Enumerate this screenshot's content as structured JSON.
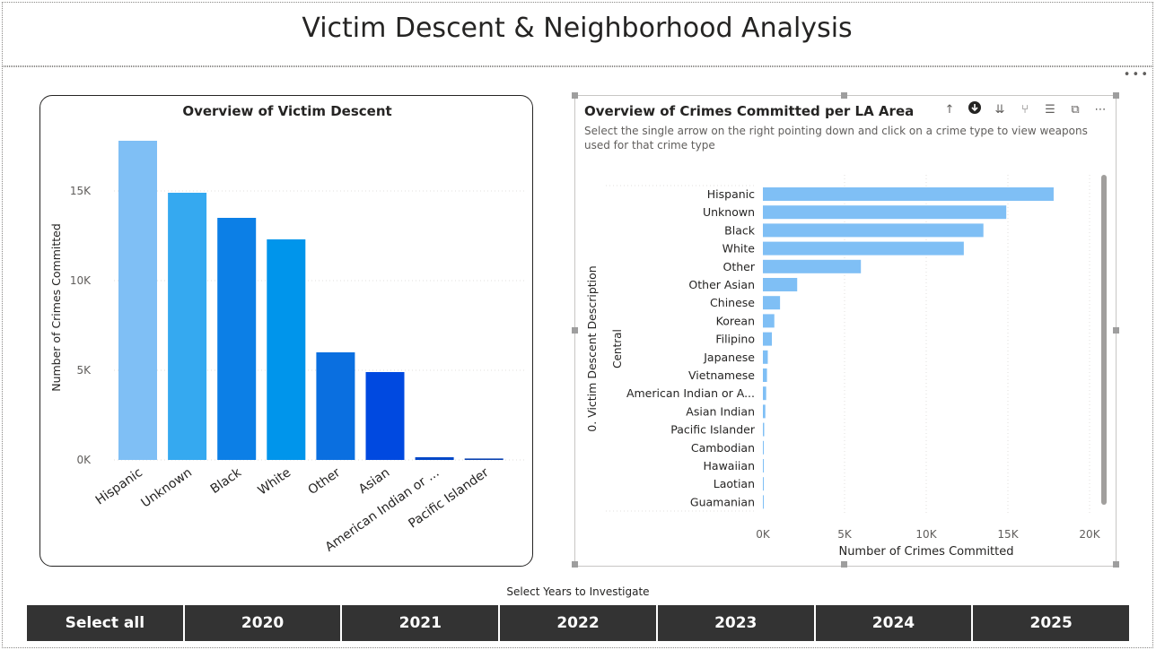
{
  "page": {
    "title": "Victim Descent & Neighborhood Analysis"
  },
  "colors": {
    "accent": "#118DFF",
    "bar_light": "#7FBFF5",
    "slicer_bg": "#333333"
  },
  "left_visual": {
    "title": "Overview of Victim Descent"
  },
  "right_visual": {
    "title": "Overview of Crimes Committed per LA Area",
    "subtitle": "Select the single arrow on the right pointing down and click on a crime type to view weapons used for that crime type",
    "toolbar_icons": [
      "arrow-up-icon",
      "drill-down-icon",
      "expand-all-icon",
      "drill-fork-icon",
      "filter-icon",
      "focus-mode-icon",
      "more-options-icon"
    ]
  },
  "slicer": {
    "title": "Select Years to Investigate",
    "options": [
      "Select all",
      "2020",
      "2021",
      "2022",
      "2023",
      "2024",
      "2025"
    ]
  },
  "chart_data": [
    {
      "type": "bar",
      "title": "Overview of Victim Descent",
      "xlabel": "",
      "ylabel": "Number of Crimes Committed",
      "categories": [
        "Hispanic",
        "Unknown",
        "Black",
        "White",
        "Other",
        "Asian",
        "American Indian or ...",
        "Pacific Islander"
      ],
      "values": [
        17800,
        14900,
        13500,
        12300,
        6000,
        4900,
        150,
        80
      ],
      "colors": [
        "#7FBFF5",
        "#35A9F0",
        "#0C7FE6",
        "#0095EB",
        "#0A6FE0",
        "#0049E0",
        "#0047C8",
        "#0840B0"
      ],
      "yticks": [
        "0K",
        "5K",
        "10K",
        "15K"
      ],
      "ylim": [
        0,
        18000
      ],
      "grid": true
    },
    {
      "type": "bar",
      "orientation": "horizontal",
      "title": "Overview of Crimes Committed per LA Area",
      "xlabel": "Number of Crimes Committed",
      "ylabel": "0. Victim Descent Description",
      "group_label": "Central",
      "categories": [
        "Hispanic",
        "Unknown",
        "Black",
        "White",
        "Other",
        "Other Asian",
        "Chinese",
        "Korean",
        "Filipino",
        "Japanese",
        "Vietnamese",
        "American Indian or A...",
        "Asian Indian",
        "Pacific Islander",
        "Cambodian",
        "Hawaiian",
        "Laotian",
        "Guamanian"
      ],
      "values": [
        17800,
        14900,
        13500,
        12300,
        6000,
        2100,
        1050,
        700,
        550,
        300,
        250,
        200,
        150,
        80,
        40,
        30,
        20,
        10
      ],
      "xticks": [
        "0K",
        "5K",
        "10K",
        "15K",
        "20K"
      ],
      "xlim": [
        0,
        20000
      ],
      "grid": true
    }
  ]
}
